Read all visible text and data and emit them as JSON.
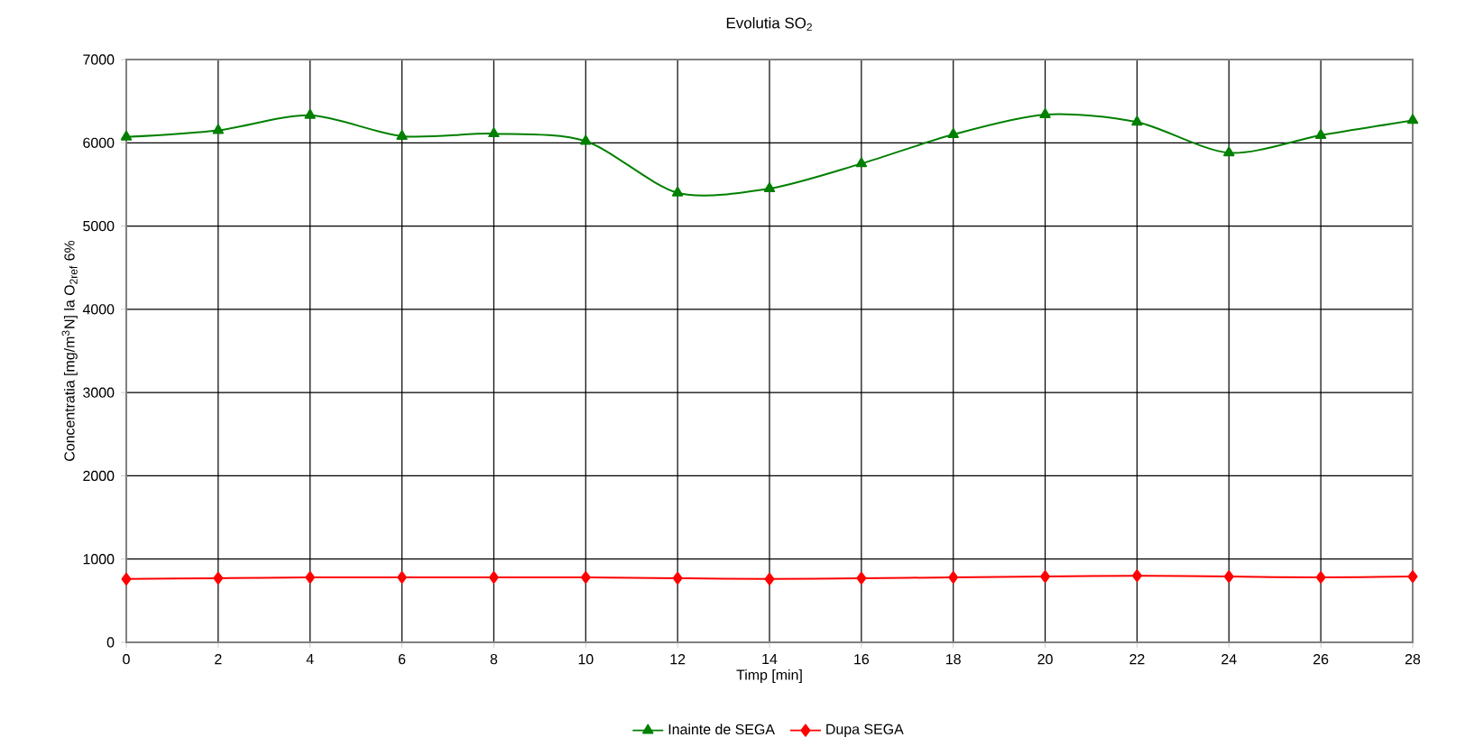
{
  "chart_data": {
    "type": "line",
    "title": "Evolutia SO$_{2}$",
    "xlabel": "Timp [min]",
    "ylabel": "Concentratia [mg/m$^{3}$N] la O$_{2ref}$ 6%",
    "x": [
      0,
      2,
      4,
      6,
      8,
      10,
      12,
      14,
      16,
      18,
      20,
      22,
      24,
      26,
      28
    ],
    "series": [
      {
        "name": "Inainte de SEGA",
        "color": "#008000",
        "marker": "triangle",
        "values": [
          6070,
          6150,
          6330,
          6080,
          6110,
          6020,
          5400,
          5450,
          5750,
          6100,
          6340,
          6250,
          5880,
          6090,
          6270
        ]
      },
      {
        "name": "Dupa SEGA",
        "color": "#ff0000",
        "marker": "diamond",
        "values": [
          760,
          770,
          780,
          780,
          780,
          780,
          770,
          760,
          770,
          780,
          790,
          800,
          790,
          780,
          790
        ]
      }
    ],
    "xlim": [
      0,
      28
    ],
    "xticks": [
      0,
      2,
      4,
      6,
      8,
      10,
      12,
      14,
      16,
      18,
      20,
      22,
      24,
      26,
      28
    ],
    "ylim": [
      0,
      7000
    ],
    "yticks": [
      0,
      1000,
      2000,
      3000,
      4000,
      5000,
      6000,
      7000
    ],
    "grid": true,
    "legend": "bottom",
    "line_style": "solid"
  }
}
